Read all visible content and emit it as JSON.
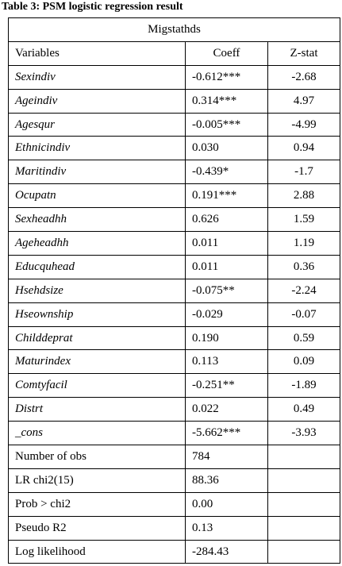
{
  "caption": "Table 3: PSM logistic regression result",
  "table": {
    "group": "Migstathds",
    "header": [
      "Variables",
      "Coeff",
      "Z-stat"
    ],
    "rows": [
      [
        "Sexindiv",
        "-0.612***",
        "-2.68"
      ],
      [
        "Ageindiv",
        "0.314***",
        "4.97"
      ],
      [
        "Agesqur",
        "-0.005***",
        "-4.99"
      ],
      [
        "Ethnicindiv",
        "0.030",
        "0.94"
      ],
      [
        "Maritindiv",
        "-0.439*",
        "-1.7"
      ],
      [
        "Ocupatn",
        "0.191***",
        "2.88"
      ],
      [
        "Sexheadhh",
        "0.626",
        "1.59"
      ],
      [
        "Ageheadhh",
        "0.011",
        "1.19"
      ],
      [
        "Educquhead",
        "0.011",
        "0.36"
      ],
      [
        "Hsehdsize",
        "-0.075**",
        "-2.24"
      ],
      [
        "Hseownship",
        "-0.029",
        "-0.07"
      ],
      [
        "Childdeprat",
        "0.190",
        "0.59"
      ],
      [
        "Maturindex",
        "0.113",
        "0.09"
      ],
      [
        "Comtyfacil",
        "-0.251**",
        "-1.89"
      ],
      [
        "Distrt",
        "0.022",
        "0.49"
      ],
      [
        "_cons",
        "-5.662***",
        "-3.93"
      ]
    ],
    "stats": [
      [
        "Number of obs",
        "784"
      ],
      [
        "LR chi2(15)",
        "88.36"
      ],
      [
        "Prob > chi2",
        "0.00"
      ],
      [
        "Pseudo R2",
        "0.13"
      ],
      [
        "Log likelihood",
        "-284.43"
      ]
    ]
  }
}
